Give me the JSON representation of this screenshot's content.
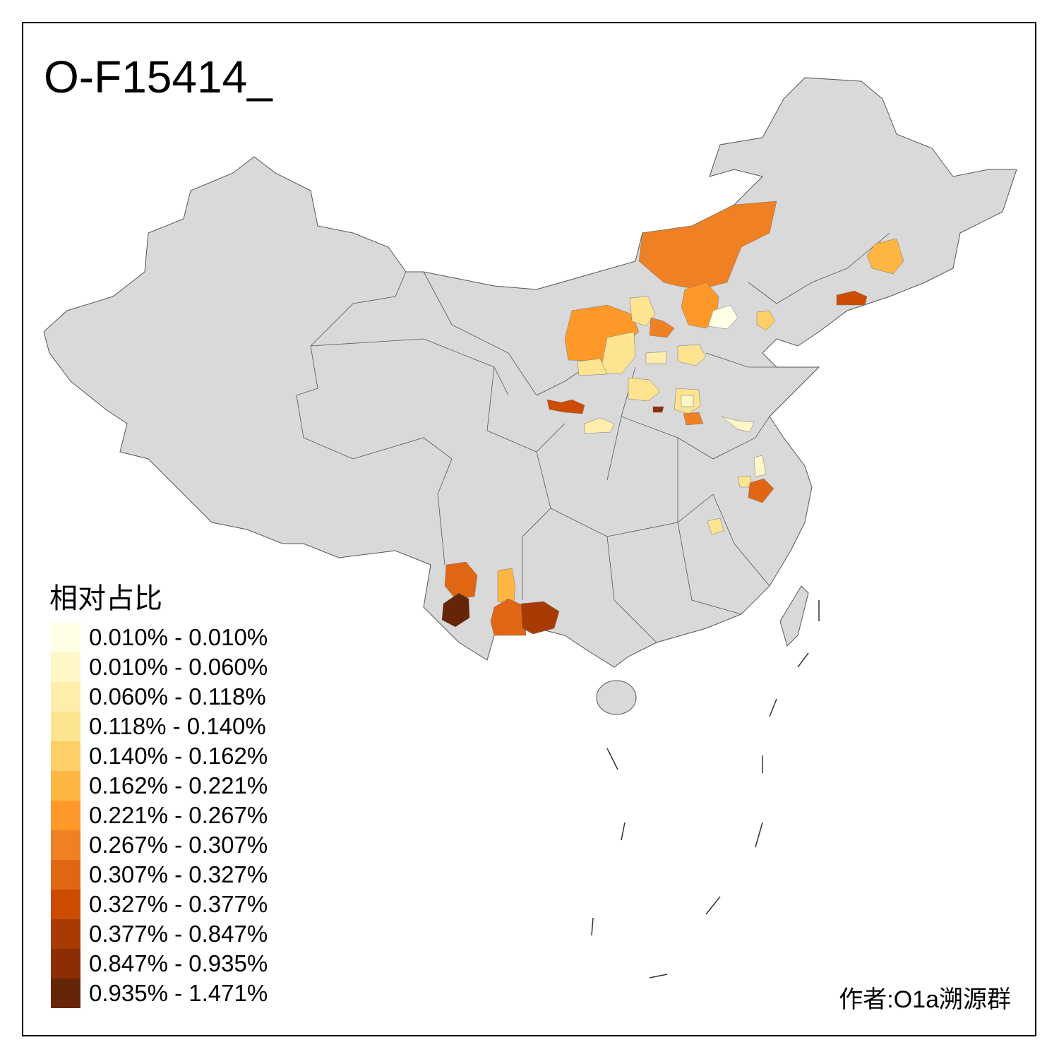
{
  "title": "O-F15414_",
  "legend": {
    "title": "相对占比",
    "bins": [
      {
        "label": "0.010% - 0.010%",
        "color": "#FFFFE5"
      },
      {
        "label": "0.010% - 0.060%",
        "color": "#FFF7C8"
      },
      {
        "label": "0.060% - 0.118%",
        "color": "#FEEDAB"
      },
      {
        "label": "0.118% - 0.140%",
        "color": "#FEE391"
      },
      {
        "label": "0.140% - 0.162%",
        "color": "#FECF66"
      },
      {
        "label": "0.162% - 0.221%",
        "color": "#FEB643"
      },
      {
        "label": "0.221% - 0.267%",
        "color": "#FE9929"
      },
      {
        "label": "0.267% - 0.307%",
        "color": "#F08024"
      },
      {
        "label": "0.307% - 0.327%",
        "color": "#E06614"
      },
      {
        "label": "0.327% - 0.377%",
        "color": "#CC4C02"
      },
      {
        "label": "0.377% - 0.847%",
        "color": "#A83A04"
      },
      {
        "label": "0.847% - 0.935%",
        "color": "#8C2D04"
      },
      {
        "label": "0.935% - 1.471%",
        "color": "#662506"
      }
    ]
  },
  "base_fill": "#D9D9D9",
  "author": "作者:O1a溯源群"
}
